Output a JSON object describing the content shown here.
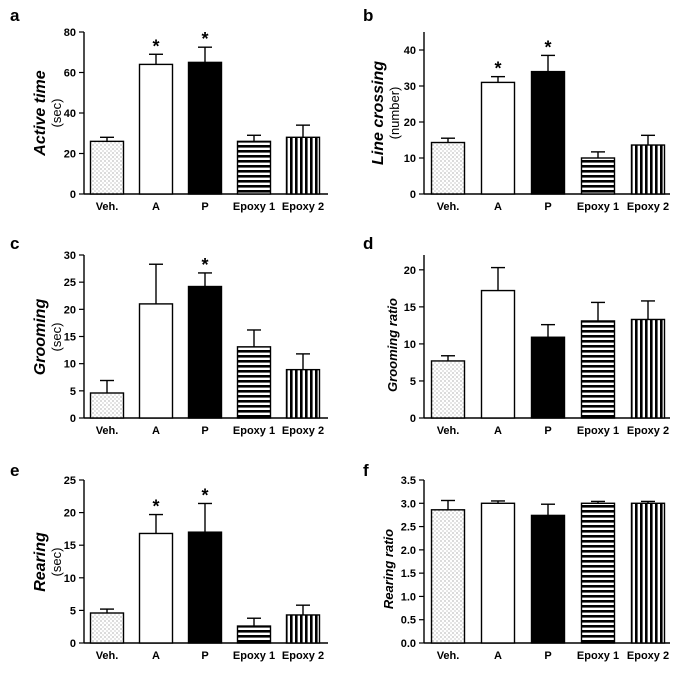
{
  "chart_data": [
    {
      "type": "bar",
      "panel_label": "a",
      "ylabel_main": "Active time",
      "ylabel_unit": "(sec)",
      "categories": [
        "Veh.",
        "A",
        "P",
        "Epoxy 1",
        "Epoxy 2"
      ],
      "values": [
        26,
        64,
        65,
        26,
        28
      ],
      "errors": [
        2,
        5,
        7.5,
        3,
        6
      ],
      "significant": [
        false,
        true,
        true,
        false,
        false
      ],
      "ylim": [
        0,
        80
      ],
      "yticks": [
        0,
        20,
        40,
        60,
        80
      ],
      "yticklabels": [
        "0",
        "20",
        "40",
        "60",
        "80"
      ],
      "patterns": [
        "dots",
        "white",
        "black",
        "hstripes",
        "vstripes"
      ]
    },
    {
      "type": "bar",
      "panel_label": "b",
      "ylabel_main": "Line crossing",
      "ylabel_unit": "(number)",
      "categories": [
        "Veh.",
        "A",
        "P",
        "Epoxy 1",
        "Epoxy 2"
      ],
      "values": [
        14.3,
        31,
        34,
        10,
        13.6
      ],
      "errors": [
        1.2,
        1.6,
        4.5,
        1.7,
        2.7
      ],
      "significant": [
        false,
        true,
        true,
        false,
        false
      ],
      "ylim": [
        0,
        45
      ],
      "yticks": [
        0,
        10,
        20,
        30,
        40
      ],
      "yticklabels": [
        "0",
        "10",
        "20",
        "30",
        "40"
      ],
      "patterns": [
        "dots",
        "white",
        "black",
        "hstripes",
        "vstripes"
      ]
    },
    {
      "type": "bar",
      "panel_label": "c",
      "ylabel_main": "Grooming",
      "ylabel_unit": "(sec)",
      "categories": [
        "Veh.",
        "A",
        "P",
        "Epoxy 1",
        "Epoxy 2"
      ],
      "values": [
        4.6,
        21,
        24.2,
        13.1,
        8.9
      ],
      "errors": [
        2.3,
        7.3,
        2.5,
        3.1,
        2.9
      ],
      "significant": [
        false,
        false,
        true,
        false,
        false
      ],
      "ylim": [
        0,
        30
      ],
      "yticks": [
        0,
        5,
        10,
        15,
        20,
        25,
        30
      ],
      "yticklabels": [
        "0",
        "5",
        "10",
        "15",
        "20",
        "25",
        "30"
      ],
      "patterns": [
        "dots",
        "white",
        "black",
        "hstripes",
        "vstripes"
      ]
    },
    {
      "type": "bar",
      "panel_label": "d",
      "ylabel_main": "Grooming ratio",
      "ylabel_unit": "",
      "categories": [
        "Veh.",
        "A",
        "P",
        "Epoxy 1",
        "Epoxy 2"
      ],
      "values": [
        7.7,
        17.2,
        10.9,
        13.1,
        13.3
      ],
      "errors": [
        0.7,
        3.1,
        1.7,
        2.5,
        2.5
      ],
      "significant": [
        false,
        false,
        false,
        false,
        false
      ],
      "ylim": [
        0,
        22
      ],
      "yticks": [
        0,
        5,
        10,
        15,
        20
      ],
      "yticklabels": [
        "0",
        "5",
        "10",
        "15",
        "20"
      ],
      "patterns": [
        "dots",
        "white",
        "black",
        "hstripes",
        "vstripes"
      ]
    },
    {
      "type": "bar",
      "panel_label": "e",
      "ylabel_main": "Rearing",
      "ylabel_unit": "(sec)",
      "categories": [
        "Veh.",
        "A",
        "P",
        "Epoxy 1",
        "Epoxy 2"
      ],
      "values": [
        4.6,
        16.8,
        17,
        2.6,
        4.3
      ],
      "errors": [
        0.6,
        2.9,
        4.4,
        1.2,
        1.5
      ],
      "significant": [
        false,
        true,
        true,
        false,
        false
      ],
      "ylim": [
        0,
        25
      ],
      "yticks": [
        0,
        5,
        10,
        15,
        20,
        25
      ],
      "yticklabels": [
        "0",
        "5",
        "10",
        "15",
        "20",
        "25"
      ],
      "patterns": [
        "dots",
        "white",
        "black",
        "hstripes",
        "vstripes"
      ]
    },
    {
      "type": "bar",
      "panel_label": "f",
      "ylabel_main": "Rearing ratio",
      "ylabel_unit": "",
      "categories": [
        "Veh.",
        "A",
        "P",
        "Epoxy 1",
        "Epoxy 2"
      ],
      "values": [
        2.86,
        3.0,
        2.74,
        3.0,
        3.0
      ],
      "errors": [
        0.2,
        0.05,
        0.24,
        0.04,
        0.04
      ],
      "significant": [
        false,
        false,
        false,
        false,
        false
      ],
      "ylim": [
        0,
        3.5
      ],
      "yticks": [
        0,
        0.5,
        1.0,
        1.5,
        2.0,
        2.5,
        3.0,
        3.5
      ],
      "yticklabels": [
        "0.0",
        "0.5",
        "1.0",
        "1.5",
        "2.0",
        "2.5",
        "3.0",
        "3.5"
      ],
      "patterns": [
        "dots",
        "white",
        "black",
        "hstripes",
        "vstripes"
      ]
    }
  ],
  "significance_marker": "*",
  "colors": {
    "ink": "#000000",
    "paper": "#ffffff",
    "dots": "#6e6e6e"
  }
}
